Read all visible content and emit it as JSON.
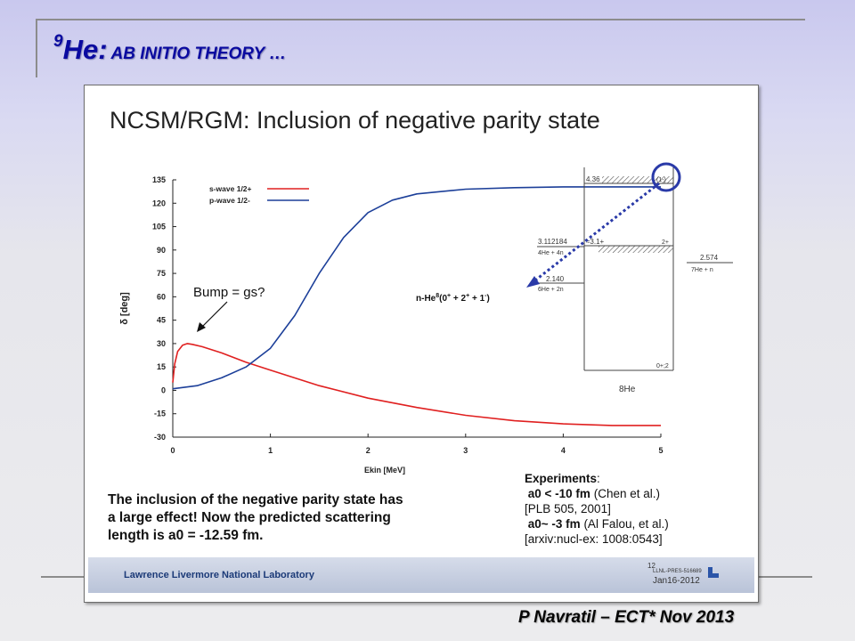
{
  "slide": {
    "title_sup": "9",
    "title_main": "He:",
    "title_rest": "AB INITIO THEORY …",
    "credit": "P Navratil – ECT* Nov 2013"
  },
  "panel": {
    "heading": "NCSM/RGM: Inclusion of negative parity state",
    "annotation": "Bump = gs?",
    "channel_label": "n-He8(0+ + 2+ + 1-)",
    "conclusion_lines": [
      "The inclusion of the negative parity state has",
      "a large effect! Now the predicted scattering",
      "length is a0 = -12.59 fm."
    ],
    "experiments": {
      "heading": "Experiments",
      "line1_value": "a0 < -10 fm",
      "line1_source": "(Chen et al.)",
      "line2": "[PLB 505, 2001]",
      "line3_value": "a0~ -3 fm",
      "line3_source": "(Al Falou, et al.)",
      "line4": "[arxiv:nucl-ex: 1008:0543]"
    },
    "footer": {
      "lab": "Lawrence Livermore National Laboratory",
      "page": "12",
      "code": "LLNL-PRES-516689",
      "date": "Jan16-2012"
    }
  },
  "chart_data": {
    "type": "line",
    "xlabel": "Ekin [MeV]",
    "ylabel": "δ [deg]",
    "xlim": [
      0,
      5
    ],
    "ylim": [
      -30,
      135
    ],
    "x_ticks": [
      0,
      1,
      2,
      3,
      4,
      5
    ],
    "y_ticks": [
      -30,
      -15,
      0,
      15,
      30,
      45,
      60,
      75,
      90,
      105,
      120,
      135
    ],
    "legend_position": "top-left",
    "series": [
      {
        "name": "s-wave 1/2+",
        "color": "#e02020",
        "x": [
          0,
          0.02,
          0.05,
          0.1,
          0.15,
          0.2,
          0.3,
          0.5,
          0.75,
          1.0,
          1.5,
          2.0,
          2.5,
          3.0,
          3.5,
          4.0,
          4.5,
          5.0
        ],
        "y": [
          5,
          17,
          25,
          29,
          30,
          29.5,
          28,
          24,
          18,
          13,
          3,
          -5,
          -11,
          -16,
          -19.5,
          -21.5,
          -22.5,
          -22.5
        ]
      },
      {
        "name": "p-wave 1/2-",
        "color": "#1c3f99",
        "x": [
          0,
          0.25,
          0.5,
          0.75,
          1.0,
          1.25,
          1.5,
          1.75,
          2.0,
          2.25,
          2.5,
          3.0,
          3.5,
          4.0,
          4.5,
          5.0
        ],
        "y": [
          1,
          3,
          8,
          15,
          27,
          48,
          75,
          98,
          114,
          122,
          126,
          129,
          130,
          130.5,
          130.5,
          130.5
        ]
      }
    ]
  },
  "level_scheme": {
    "nucleus": "8He",
    "levels": [
      {
        "energy": "4.36",
        "label": "(1-)"
      },
      {
        "energy": "3.112184",
        "label": "≈3.1+",
        "label2": "2+",
        "threshold": "4He + 4n"
      },
      {
        "energy": "2.140",
        "threshold": "6He + 2n"
      },
      {
        "energy": "2.574",
        "threshold": "7He + n"
      },
      {
        "energy": "",
        "label": "0+;2"
      }
    ]
  }
}
